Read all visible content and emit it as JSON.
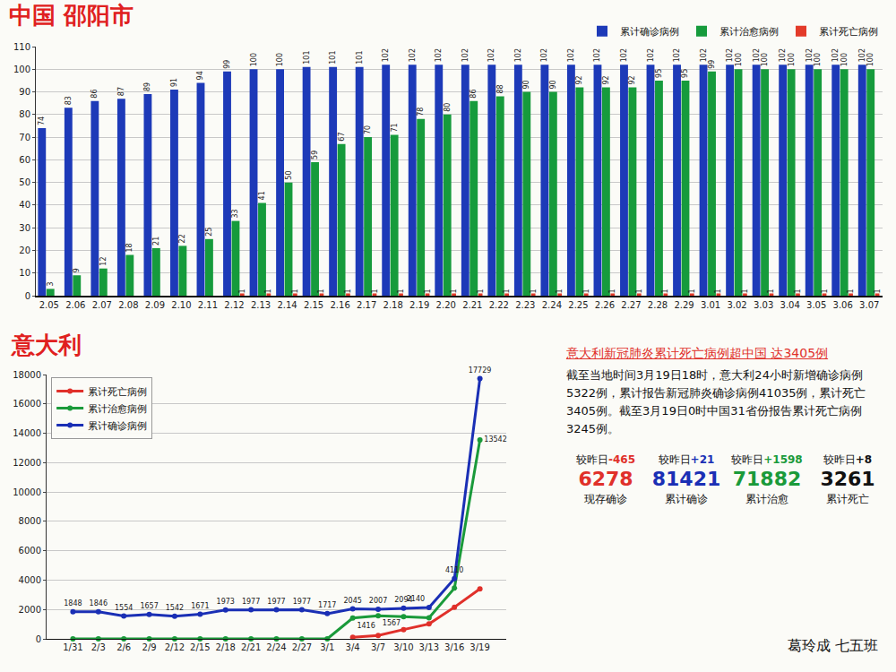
{
  "chart_data": [
    {
      "type": "bar",
      "title": "中国 邵阳市",
      "categories": [
        "2.05",
        "2.06",
        "2.07",
        "2.08",
        "2.09",
        "2.10",
        "2.11",
        "2.12",
        "2.13",
        "2.14",
        "2.15",
        "2.16",
        "2.17",
        "2.18",
        "2.19",
        "2.20",
        "2.21",
        "2.22",
        "2.23",
        "2.24",
        "2.25",
        "2.26",
        "2.27",
        "2.28",
        "2.29",
        "3.01",
        "3.02",
        "3.03",
        "3.04",
        "3.05",
        "3.06",
        "3.07"
      ],
      "series": [
        {
          "name": "累计确诊病例",
          "color": "#1d3ab8",
          "values": [
            74,
            83,
            86,
            87,
            89,
            91,
            94,
            99,
            100,
            100,
            101,
            101,
            101,
            102,
            102,
            102,
            102,
            102,
            102,
            102,
            102,
            102,
            102,
            102,
            102,
            102,
            102,
            102,
            102,
            102,
            102,
            102
          ]
        },
        {
          "name": "累计治愈病例",
          "color": "#169b3c",
          "values": [
            3,
            9,
            12,
            18,
            21,
            22,
            25,
            33,
            41,
            50,
            59,
            67,
            70,
            71,
            78,
            80,
            86,
            88,
            90,
            90,
            92,
            92,
            92,
            95,
            95,
            99,
            100,
            100,
            100,
            100,
            100,
            100
          ]
        },
        {
          "name": "累计死亡病例",
          "color": "#e33b2a",
          "values": [
            null,
            null,
            null,
            null,
            null,
            null,
            null,
            1,
            1,
            1,
            1,
            1,
            1,
            1,
            1,
            1,
            1,
            1,
            1,
            1,
            1,
            1,
            1,
            1,
            1,
            1,
            1,
            1,
            1,
            1,
            1,
            1
          ]
        }
      ],
      "ylim": [
        0,
        110
      ],
      "yticks": [
        0,
        10,
        20,
        30,
        40,
        50,
        60,
        70,
        80,
        90,
        100,
        110
      ],
      "grid": true,
      "data_labels": true,
      "legend": "top right"
    },
    {
      "type": "line",
      "title": "意大利",
      "categories": [
        "1/31",
        "2/3",
        "2/6",
        "2/9",
        "2/12",
        "2/15",
        "2/18",
        "2/21",
        "2/24",
        "2/27",
        "3/1",
        "3/4",
        "3/7",
        "3/10",
        "3/13",
        "3/16",
        "3/19"
      ],
      "series": [
        {
          "name": "累计死亡病例",
          "color": "#e0302a",
          "data_labels": false,
          "values": [
            null,
            null,
            null,
            null,
            null,
            null,
            null,
            null,
            null,
            null,
            null,
            107,
            233,
            631,
            1016,
            2158,
            3405
          ]
        },
        {
          "name": "累计治愈病例",
          "color": "#1a9a3a",
          "values": [
            0,
            0,
            0,
            0,
            0,
            0,
            0,
            0,
            0,
            0,
            0,
            1416,
            1567,
            1504,
            1441,
            3456,
            13542
          ],
          "value_labels": [
            null,
            null,
            null,
            null,
            null,
            null,
            null,
            null,
            null,
            null,
            null,
            "1416",
            "1567",
            null,
            null,
            null,
            "13542"
          ]
        },
        {
          "name": "累计确诊病例",
          "color": "#1a2fb5",
          "values": [
            1848,
            1846,
            1554,
            1657,
            1542,
            1671,
            1973,
            1977,
            1977,
            1977,
            1717,
            2045,
            2007,
            2094,
            2140,
            4110,
            17729
          ]
        }
      ],
      "ylim": [
        0,
        18000
      ],
      "yticks": [
        0,
        2000,
        4000,
        6000,
        8000,
        10000,
        12000,
        14000,
        16000,
        18000
      ],
      "grid": true,
      "data_labels": true,
      "marker": "circle",
      "legend": "top left"
    }
  ],
  "text_panel": {
    "heading": "意大利新冠肺炎累计死亡病例超中国 达3405例",
    "paragraph": "截至当地时间3月19日18时，意大利24小时新增确诊病例5322例，累计报告新冠肺炎确诊病例41035例，累计死亡3405例。截至3月19日0时中国31省份报告累计死亡病例3245例。",
    "stats": [
      {
        "change_prefix": "较昨日",
        "change": "-465",
        "value": 6278,
        "label": "现存确诊",
        "color": "#e0302a"
      },
      {
        "change_prefix": "较昨日",
        "change": "+21",
        "value": 81421,
        "label": "累计确诊",
        "color": "#1a2fb5"
      },
      {
        "change_prefix": "较昨日",
        "change": "+1598",
        "value": 71882,
        "label": "累计治愈",
        "color": "#1a9a3a"
      },
      {
        "change_prefix": "较昨日",
        "change": "+8",
        "value": 3261,
        "label": "累计死亡",
        "color": "#111111"
      }
    ],
    "signature": "葛玲成 七五班"
  }
}
